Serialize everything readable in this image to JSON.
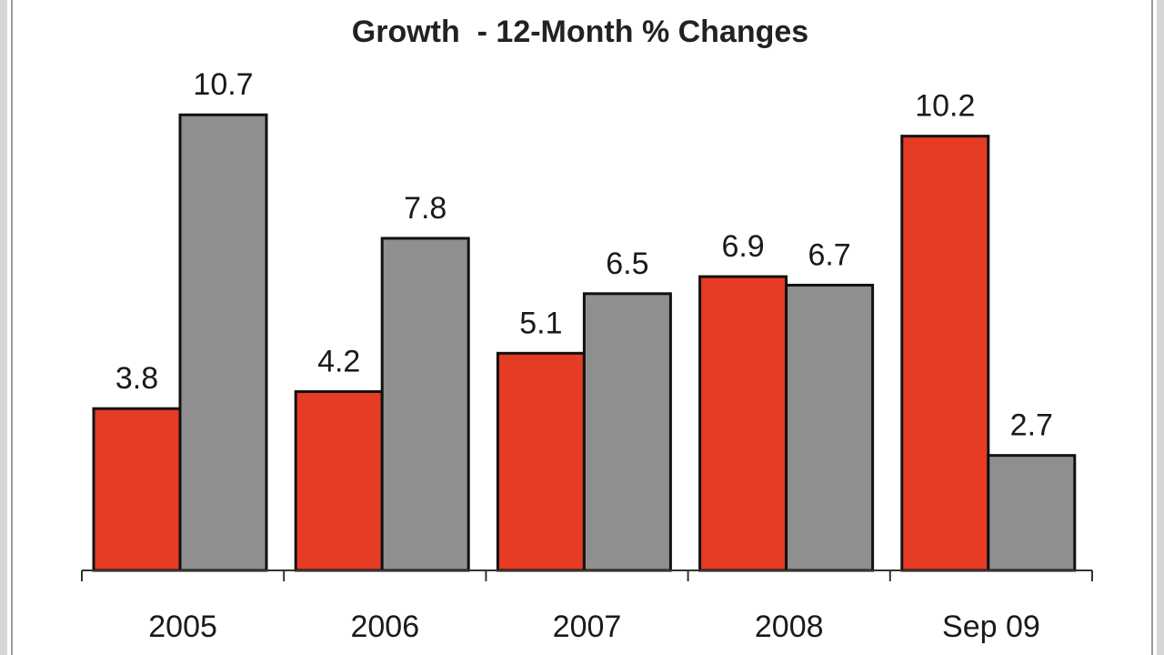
{
  "chart_data": {
    "type": "bar",
    "title": "Growth  - 12-Month % Changes",
    "xlabel": "",
    "ylabel": "",
    "categories": [
      "2005",
      "2006",
      "2007",
      "2008",
      "Sep 09"
    ],
    "series": [
      {
        "color": "#e63b24",
        "values": [
          3.8,
          4.2,
          5.1,
          6.9,
          10.2
        ]
      },
      {
        "color": "#8f8f8f",
        "values": [
          10.7,
          7.8,
          6.5,
          6.7,
          2.7
        ]
      }
    ],
    "ylim": [
      0,
      11
    ],
    "grid": false,
    "legend": "none"
  }
}
